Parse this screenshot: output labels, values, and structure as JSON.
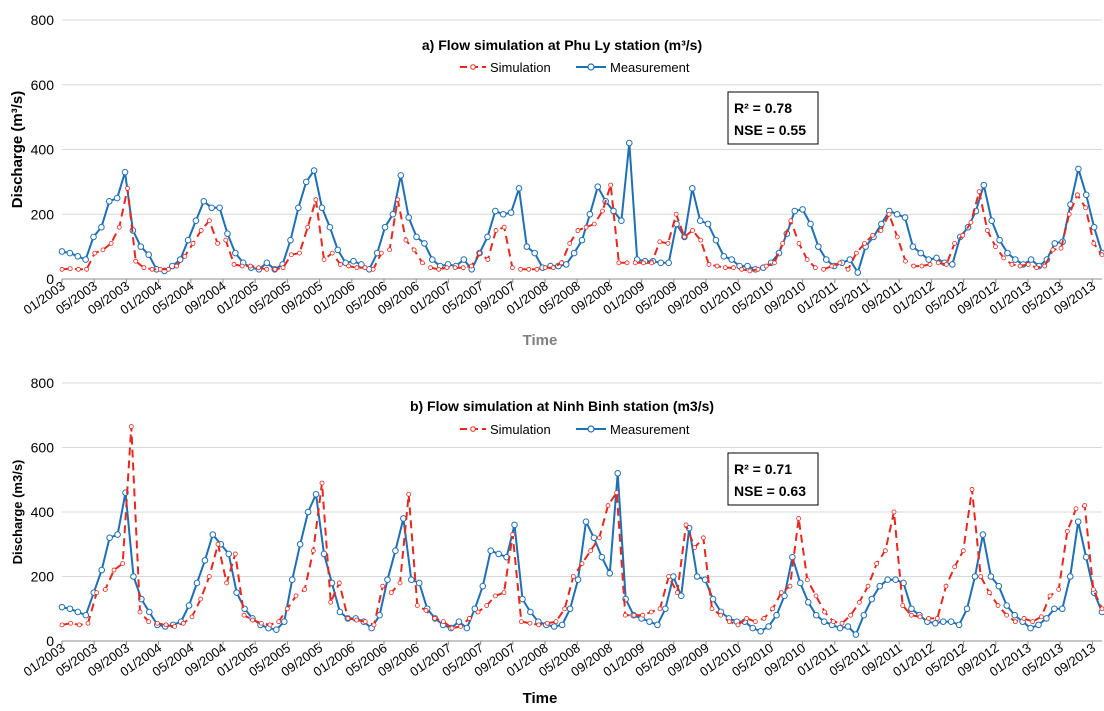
{
  "colors": {
    "simulation": "#e8281e",
    "measurement": "#1f6fb5",
    "grid": "#d9d9d9",
    "axis": "#8c8c8c",
    "text": "#000000",
    "xlabel": "#7f7f7f"
  },
  "chart_data": [
    {
      "type": "line",
      "title": "a) Flow simulation at Phu Ly station (m³/s)",
      "xlabel": "Time",
      "ylabel": "Discharge (m³/s)",
      "ylim": [
        0,
        800
      ],
      "yticks": [
        0,
        200,
        400,
        600,
        800
      ],
      "grid": true,
      "legend": "top-center",
      "stats": [
        "R² = 0.78",
        "NSE = 0.55"
      ],
      "x_tick_labels": [
        "01/2003",
        "05/2003",
        "09/2003",
        "01/2004",
        "05/2004",
        "09/2004",
        "01/2005",
        "05/2005",
        "09/2005",
        "01/2006",
        "05/2006",
        "09/2006",
        "01/2007",
        "05/2007",
        "09/2007",
        "01/2008",
        "05/2008",
        "09/2008",
        "01/2009",
        "05/2009",
        "09/2009",
        "01/2010",
        "05/2010",
        "09/2010",
        "01/2011",
        "05/2011",
        "09/2011",
        "01/2012",
        "05/2012",
        "09/2012",
        "01/2013",
        "05/2013",
        "09/2013"
      ],
      "series": [
        {
          "name": "Simulation",
          "values": [
            30,
            32,
            30,
            30,
            80,
            90,
            110,
            160,
            280,
            55,
            35,
            30,
            30,
            30,
            40,
            70,
            110,
            150,
            180,
            110,
            120,
            45,
            40,
            40,
            35,
            30,
            30,
            35,
            75,
            80,
            160,
            245,
            60,
            80,
            45,
            40,
            35,
            35,
            30,
            80,
            90,
            245,
            120,
            90,
            50,
            35,
            30,
            35,
            35,
            35,
            40,
            80,
            60,
            150,
            160,
            35,
            30,
            30,
            30,
            35,
            35,
            50,
            110,
            150,
            160,
            170,
            210,
            290,
            50,
            50,
            50,
            50,
            50,
            115,
            110,
            200,
            130,
            150,
            120,
            45,
            40,
            35,
            35,
            30,
            25,
            30,
            40,
            50,
            110,
            180,
            110,
            60,
            35,
            30,
            40,
            50,
            30,
            80,
            110,
            135,
            150,
            200,
            130,
            55,
            40,
            40,
            45,
            50,
            45,
            110,
            135,
            175,
            270,
            150,
            100,
            65,
            45,
            40,
            45,
            35,
            40,
            90,
            95,
            200,
            260,
            220,
            110,
            75
          ]
        },
        {
          "name": "Measurement",
          "values": [
            85,
            80,
            70,
            60,
            130,
            160,
            240,
            250,
            330,
            150,
            100,
            75,
            30,
            25,
            40,
            60,
            120,
            180,
            240,
            220,
            220,
            140,
            80,
            50,
            35,
            30,
            50,
            30,
            45,
            120,
            220,
            300,
            335,
            220,
            160,
            90,
            50,
            55,
            45,
            30,
            80,
            160,
            200,
            320,
            190,
            130,
            110,
            60,
            40,
            45,
            40,
            60,
            30,
            80,
            130,
            210,
            200,
            205,
            280,
            100,
            80,
            35,
            40,
            40,
            45,
            80,
            120,
            200,
            285,
            240,
            210,
            180,
            420,
            60,
            55,
            55,
            50,
            50,
            170,
            130,
            280,
            180,
            170,
            120,
            70,
            60,
            40,
            40,
            30,
            35,
            50,
            80,
            140,
            210,
            215,
            170,
            100,
            60,
            40,
            50,
            60,
            20,
            100,
            130,
            170,
            210,
            200,
            190,
            100,
            80,
            60,
            65,
            50,
            45,
            130,
            160,
            210,
            290,
            180,
            120,
            80,
            60,
            45,
            60,
            40,
            60,
            110,
            115,
            230,
            340,
            260,
            160,
            80
          ]
        }
      ]
    },
    {
      "type": "line",
      "title": "b) Flow simulation at Ninh Binh station (m3/s)",
      "xlabel": "Time",
      "ylabel": "Discharge (m3/s)",
      "ylim": [
        0,
        800
      ],
      "yticks": [
        0,
        200,
        400,
        600,
        800
      ],
      "grid": true,
      "legend": "top-center",
      "stats": [
        "R² = 0.71",
        "NSE = 0.63"
      ],
      "x_tick_labels": [
        "01/2003",
        "05/2003",
        "09/2003",
        "01/2004",
        "05/2004",
        "09/2004",
        "01/2005",
        "05/2005",
        "09/2005",
        "01/2006",
        "05/2006",
        "09/2006",
        "01/2007",
        "05/2007",
        "09/2007",
        "01/2008",
        "05/2008",
        "09/2008",
        "01/2009",
        "05/2009",
        "09/2009",
        "01/2010",
        "05/2010",
        "09/2010",
        "01/2011",
        "05/2011",
        "09/2011",
        "01/2012",
        "05/2012",
        "09/2012",
        "01/2013",
        "05/2013",
        "09/2013"
      ],
      "series": [
        {
          "name": "Simulation",
          "values": [
            50,
            55,
            50,
            55,
            150,
            160,
            220,
            240,
            665,
            90,
            60,
            55,
            50,
            45,
            55,
            75,
            130,
            200,
            300,
            180,
            270,
            80,
            65,
            55,
            50,
            60,
            100,
            140,
            160,
            280,
            490,
            120,
            180,
            70,
            65,
            60,
            50,
            170,
            150,
            180,
            455,
            110,
            95,
            70,
            60,
            40,
            45,
            70,
            90,
            110,
            140,
            150,
            330,
            60,
            55,
            50,
            55,
            60,
            100,
            200,
            240,
            280,
            320,
            420,
            460,
            80,
            80,
            80,
            90,
            100,
            200,
            150,
            360,
            290,
            320,
            100,
            80,
            60,
            50,
            70,
            60,
            70,
            100,
            150,
            170,
            380,
            190,
            140,
            90,
            60,
            55,
            80,
            120,
            170,
            240,
            280,
            400,
            110,
            80,
            75,
            70,
            70,
            170,
            230,
            280,
            470,
            200,
            150,
            110,
            80,
            60,
            70,
            60,
            75,
            140,
            160,
            340,
            410,
            420,
            160,
            100
          ]
        },
        {
          "name": "Measurement",
          "values": [
            105,
            100,
            90,
            80,
            150,
            220,
            320,
            330,
            460,
            200,
            130,
            90,
            50,
            45,
            50,
            60,
            110,
            180,
            250,
            330,
            300,
            270,
            150,
            100,
            70,
            50,
            40,
            35,
            60,
            190,
            300,
            400,
            455,
            270,
            180,
            90,
            70,
            70,
            60,
            40,
            80,
            190,
            280,
            380,
            190,
            180,
            100,
            70,
            50,
            40,
            60,
            40,
            100,
            170,
            280,
            270,
            260,
            360,
            130,
            90,
            60,
            50,
            45,
            50,
            100,
            190,
            370,
            320,
            260,
            210,
            520,
            130,
            80,
            70,
            60,
            50,
            100,
            200,
            140,
            350,
            200,
            190,
            130,
            90,
            70,
            60,
            60,
            40,
            30,
            45,
            80,
            140,
            260,
            180,
            120,
            80,
            60,
            50,
            40,
            45,
            20,
            80,
            130,
            170,
            190,
            190,
            180,
            100,
            80,
            60,
            55,
            60,
            60,
            50,
            100,
            200,
            330,
            200,
            170,
            110,
            80,
            60,
            40,
            50,
            70,
            100,
            100,
            200,
            370,
            260,
            150,
            90
          ]
        }
      ]
    }
  ]
}
